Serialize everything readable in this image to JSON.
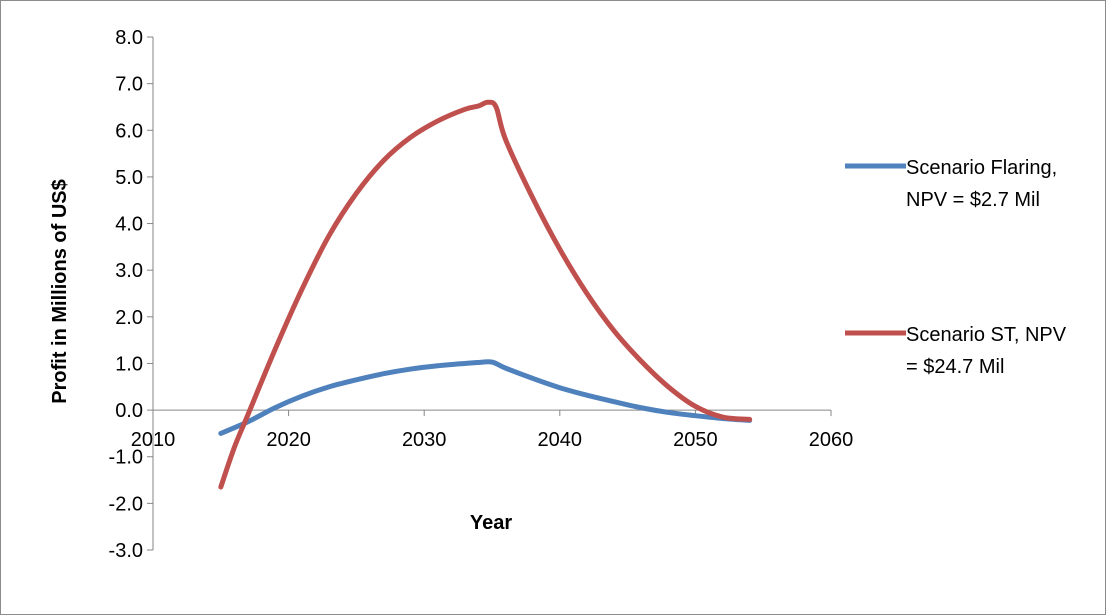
{
  "chart_data": {
    "type": "line",
    "xlabel": "Year",
    "ylabel": "Profit in Millions of US$",
    "xlim": [
      2010,
      2060
    ],
    "ylim": [
      -3.0,
      8.0
    ],
    "x_ticks": [
      "2010",
      "2020",
      "2030",
      "2040",
      "2050",
      "2060"
    ],
    "y_ticks": [
      "8.0",
      "7.0",
      "6.0",
      "5.0",
      "4.0",
      "3.0",
      "2.0",
      "1.0",
      "0.0",
      "-1.0",
      "-2.0",
      "-3.0"
    ],
    "grid": false,
    "legend_position": "right",
    "series": [
      {
        "name": "Scenario Flaring, NPV = $2.7 Mil",
        "legend_lines": [
          "Scenario Flaring,",
          "NPV = $2.7 Mil"
        ],
        "color": "#4f81bd",
        "x": [
          2015,
          2017,
          2019,
          2021,
          2023,
          2025,
          2027,
          2029,
          2031,
          2033,
          2034,
          2035,
          2036,
          2038,
          2040,
          2042,
          2044,
          2046,
          2048,
          2050,
          2052,
          2054
        ],
        "y": [
          -0.5,
          -0.25,
          0.05,
          0.3,
          0.5,
          0.65,
          0.78,
          0.88,
          0.95,
          1.0,
          1.02,
          1.03,
          0.9,
          0.68,
          0.48,
          0.32,
          0.18,
          0.05,
          -0.05,
          -0.12,
          -0.18,
          -0.22
        ]
      },
      {
        "name": "Scenario ST, NPV = $24.7 Mil",
        "legend_lines": [
          "Scenario ST, NPV",
          "= $24.7 Mil"
        ],
        "color": "#c0504d",
        "x": [
          2015,
          2016,
          2017,
          2019,
          2021,
          2023,
          2025,
          2027,
          2029,
          2031,
          2033,
          2034,
          2034.7,
          2035.3,
          2036,
          2038,
          2040,
          2042,
          2044,
          2046,
          2048,
          2050,
          2052,
          2054
        ],
        "y": [
          -1.65,
          -0.8,
          -0.1,
          1.3,
          2.6,
          3.75,
          4.65,
          5.35,
          5.85,
          6.2,
          6.45,
          6.52,
          6.6,
          6.5,
          5.8,
          4.55,
          3.45,
          2.5,
          1.7,
          1.05,
          0.5,
          0.08,
          -0.15,
          -0.2
        ]
      }
    ]
  }
}
